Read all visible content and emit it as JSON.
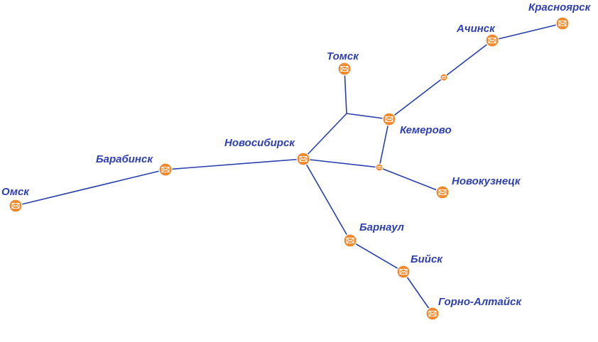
{
  "colors": {
    "line": "#2a3fae",
    "label": "#2e3fb0",
    "node_fill": "#f08a2e",
    "node_stroke": "#ffffff",
    "icon_stroke": "#ffffff"
  },
  "cities": [
    {
      "id": "omsk",
      "name": "Омск"
    },
    {
      "id": "barabinsk",
      "name": "Барабинск"
    },
    {
      "id": "novosibirsk",
      "name": "Новосибирск"
    },
    {
      "id": "tomsk",
      "name": "Томск"
    },
    {
      "id": "kemerovo",
      "name": "Кемерово"
    },
    {
      "id": "achinsk",
      "name": "Ачинск"
    },
    {
      "id": "krasnoyarsk",
      "name": "Красноярск"
    },
    {
      "id": "novokuznetsk",
      "name": "Новокузнецк"
    },
    {
      "id": "barnaul",
      "name": "Барнаул"
    },
    {
      "id": "biysk",
      "name": "Бийск"
    },
    {
      "id": "gorno_altaysk",
      "name": "Горно-Алтайск"
    }
  ],
  "junctions": [
    "j_achinsk_kemerovo",
    "j_tomsk",
    "j_novokuznetsk"
  ],
  "edges": [
    [
      "omsk",
      "barabinsk"
    ],
    [
      "barabinsk",
      "novosibirsk"
    ],
    [
      "novosibirsk",
      "j_tomsk"
    ],
    [
      "j_tomsk",
      "tomsk"
    ],
    [
      "j_tomsk",
      "kemerovo"
    ],
    [
      "kemerovo",
      "j_achinsk_kemerovo"
    ],
    [
      "j_achinsk_kemerovo",
      "achinsk"
    ],
    [
      "achinsk",
      "krasnoyarsk"
    ],
    [
      "kemerovo",
      "j_novokuznetsk"
    ],
    [
      "novosibirsk",
      "j_novokuznetsk"
    ],
    [
      "j_novokuznetsk",
      "novokuznetsk"
    ],
    [
      "novosibirsk",
      "barnaul"
    ],
    [
      "barnaul",
      "biysk"
    ],
    [
      "biysk",
      "gorno_altaysk"
    ]
  ]
}
